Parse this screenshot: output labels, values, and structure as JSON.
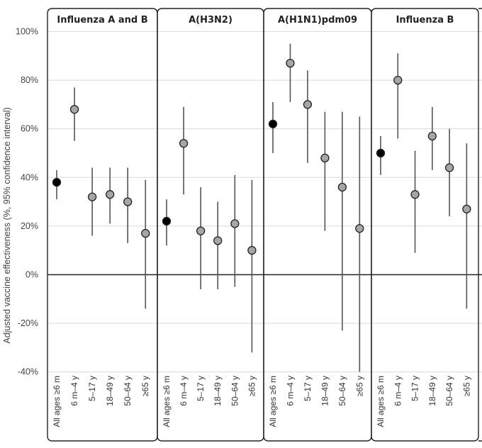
{
  "chart_data": {
    "type": "scatter",
    "subtype": "point-with-error-bars, faceted",
    "ylabel": "Adjusted vaccine effectiveness (%, 95% confidence interval)",
    "ylim": [
      -40,
      100
    ],
    "yticks": [
      100,
      80,
      60,
      40,
      20,
      0,
      -20,
      -40
    ],
    "ytick_labels": [
      "100%",
      "80%",
      "60%",
      "40%",
      "20%",
      "0%",
      "-20%",
      "-40%"
    ],
    "grid": true,
    "categories": [
      "All ages ≥6 m",
      "6 m–4 y",
      "5–17 y",
      "18–49 y",
      "50–64 y",
      "≥65 y"
    ],
    "colors": {
      "all_ages": "#000000",
      "age_group": "#a6a6a6",
      "ci_line": "#555555",
      "grid": "#d9d9d9",
      "zero_line": "#222222"
    },
    "panels": [
      {
        "title": "Influenza A and B",
        "values": [
          38,
          68,
          32,
          33,
          30,
          17
        ],
        "lower": [
          31,
          55,
          16,
          21,
          13,
          -14
        ],
        "upper": [
          43,
          77,
          44,
          44,
          44,
          39
        ]
      },
      {
        "title": "A(H3N2)",
        "values": [
          22,
          54,
          18,
          14,
          21,
          10
        ],
        "lower": [
          12,
          33,
          -6,
          -6,
          -5,
          -32
        ],
        "upper": [
          31,
          69,
          36,
          30,
          41,
          39
        ]
      },
      {
        "title": "A(H1N1)pdm09",
        "values": [
          62,
          87,
          70,
          48,
          36,
          19
        ],
        "lower": [
          50,
          71,
          46,
          18,
          -23,
          -40
        ],
        "upper": [
          71,
          95,
          84,
          67,
          67,
          65
        ]
      },
      {
        "title": "Influenza B",
        "values": [
          50,
          80,
          33,
          57,
          44,
          27
        ],
        "lower": [
          41,
          56,
          9,
          43,
          24,
          -14
        ],
        "upper": [
          57,
          91,
          51,
          69,
          60,
          54
        ]
      }
    ]
  }
}
